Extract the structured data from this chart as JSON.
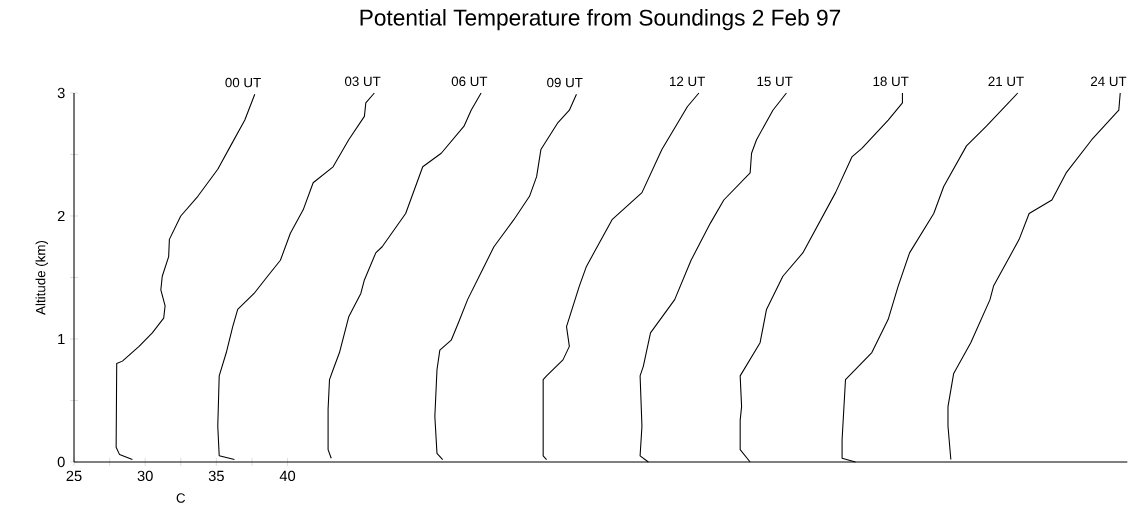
{
  "chart_data": {
    "type": "line",
    "title": "Potential Temperature from Soundings   2 Feb 97",
    "xlabel": "C",
    "ylabel": "Altitude (km)",
    "xlim": [
      25,
      99
    ],
    "ylim": [
      0,
      3
    ],
    "xticks": [
      25,
      {
        "value": 27.5,
        "label": null
      },
      30,
      {
        "value": 32.5,
        "label": null
      },
      35,
      {
        "value": 37.5,
        "label": null
      },
      40
    ],
    "yticks": [
      0,
      {
        "value": 0.5,
        "label": null
      },
      1,
      {
        "value": 1.5,
        "label": null
      },
      2,
      {
        "value": 2.5,
        "label": null
      },
      3
    ],
    "series": [
      {
        "name": "00 UT",
        "color": "#000000",
        "x": [
          29.1,
          28.2,
          27.96,
          28.0,
          28.4,
          29.57,
          30.5,
          31.3,
          31.4,
          31.1,
          31.2,
          31.65,
          31.7,
          32.5,
          33.7,
          35.1,
          36.0,
          37.0,
          37.7
        ],
        "values": [
          0.02,
          0.06,
          0.12,
          0.8,
          0.82,
          0.94,
          1.05,
          1.17,
          1.27,
          1.4,
          1.51,
          1.67,
          1.81,
          2.0,
          2.16,
          2.38,
          2.57,
          2.78,
          2.99
        ]
      },
      {
        "name": "03 UT",
        "color": "#000000",
        "x": [
          36.27,
          35.2,
          35.1,
          35.2,
          35.7,
          36.15,
          36.5,
          37.65,
          38.6,
          39.5,
          40.2,
          41.1,
          41.8,
          43.2,
          44.3,
          45.4,
          45.5,
          46.1
        ],
        "values": [
          0.02,
          0.05,
          0.29,
          0.7,
          0.89,
          1.1,
          1.24,
          1.37,
          1.51,
          1.64,
          1.86,
          2.05,
          2.27,
          2.4,
          2.62,
          2.81,
          2.92,
          3.0
        ]
      },
      {
        "name": "06 UT",
        "color": "#000000",
        "x": [
          43.07,
          42.85,
          42.85,
          42.95,
          43.2,
          43.65,
          44.3,
          45.15,
          45.4,
          46.2,
          46.65,
          48.3,
          49.5,
          50.8,
          52.4,
          52.9,
          53.6
        ],
        "values": [
          0.03,
          0.1,
          0.43,
          0.67,
          0.75,
          0.89,
          1.18,
          1.37,
          1.48,
          1.7,
          1.75,
          2.02,
          2.4,
          2.51,
          2.73,
          2.86,
          3.0
        ]
      },
      {
        "name": "09 UT",
        "color": "#000000",
        "x": [
          50.9,
          50.5,
          50.35,
          50.5,
          50.7,
          51.5,
          52.0,
          52.65,
          53.6,
          54.5,
          55.9,
          57.0,
          57.5,
          57.8,
          59.0,
          59.8,
          60.3
        ],
        "values": [
          0.02,
          0.07,
          0.37,
          0.75,
          0.91,
          0.99,
          1.13,
          1.32,
          1.54,
          1.75,
          1.97,
          2.16,
          2.32,
          2.54,
          2.76,
          2.86,
          2.99
        ]
      },
      {
        "name": "12 UT",
        "color": "#000000",
        "x": [
          58.2,
          57.96,
          57.96,
          58.2,
          59.35,
          59.8,
          59.6,
          60.5,
          61.0,
          62.8,
          64.9,
          66.3,
          68.1,
          68.9
        ],
        "values": [
          0.02,
          0.05,
          0.67,
          0.7,
          0.83,
          0.94,
          1.1,
          1.43,
          1.59,
          1.97,
          2.19,
          2.54,
          2.89,
          3.0
        ]
      },
      {
        "name": "15 UT",
        "color": "#000000",
        "x": [
          65.35,
          64.77,
          64.9,
          64.77,
          65.0,
          65.5,
          67.2,
          68.35,
          69.7,
          70.65,
          72.5,
          72.6,
          72.95,
          74.1,
          75.05
        ],
        "values": [
          0.0,
          0.05,
          0.29,
          0.7,
          0.78,
          1.05,
          1.32,
          1.64,
          1.94,
          2.13,
          2.35,
          2.51,
          2.62,
          2.86,
          3.0
        ]
      },
      {
        "name": "18 UT",
        "color": "#000000",
        "x": [
          72.5,
          71.8,
          71.8,
          71.9,
          71.8,
          73.2,
          73.65,
          74.8,
          76.2,
          78.5,
          79.65,
          80.35,
          82.2,
          83.2,
          83.2
        ],
        "values": [
          0.0,
          0.1,
          0.34,
          0.45,
          0.7,
          0.97,
          1.24,
          1.51,
          1.7,
          2.19,
          2.48,
          2.55,
          2.78,
          2.92,
          3.0
        ]
      },
      {
        "name": "21 UT",
        "color": "#000000",
        "x": [
          79.9,
          78.96,
          78.96,
          79.2,
          81.05,
          82.2,
          82.9,
          83.7,
          85.4,
          86.1,
          87.7,
          89.1,
          91.3
        ],
        "values": [
          0.0,
          0.03,
          0.18,
          0.67,
          0.89,
          1.16,
          1.43,
          1.7,
          2.02,
          2.24,
          2.57,
          2.73,
          3.0
        ]
      },
      {
        "name": "24 UT",
        "color": "#000000",
        "x": [
          86.6,
          86.4,
          86.4,
          86.8,
          88.0,
          89.35,
          89.6,
          91.4,
          92.1,
          93.7,
          94.7,
          96.5,
          98.4,
          98.5
        ],
        "values": [
          0.02,
          0.29,
          0.45,
          0.72,
          0.97,
          1.32,
          1.43,
          1.81,
          2.02,
          2.13,
          2.35,
          2.62,
          2.86,
          3.0
        ]
      }
    ]
  }
}
